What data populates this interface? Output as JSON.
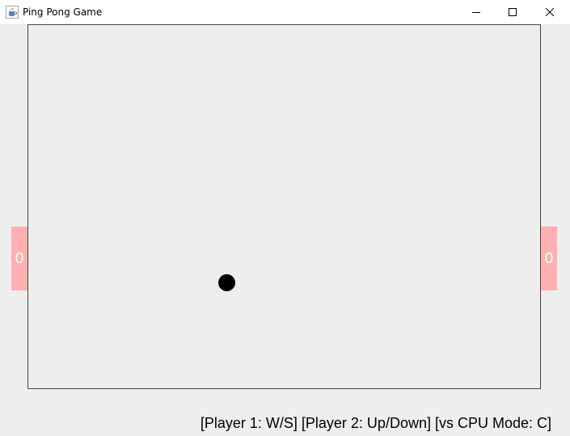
{
  "window": {
    "title": "Ping Pong Game",
    "icon": "java-cup-icon",
    "buttons": [
      "minimize-icon",
      "maximize-icon",
      "close-icon"
    ]
  },
  "game": {
    "left_score": "0",
    "right_score": "0",
    "paddle_color": "#ffb0b0",
    "ball_color": "#000000",
    "court_border_color": "#444444",
    "background_color": "#eeeeee"
  },
  "status": {
    "controls": "[Player 1: W/S] [Player 2: Up/Down] [vs CPU Mode: C]"
  }
}
